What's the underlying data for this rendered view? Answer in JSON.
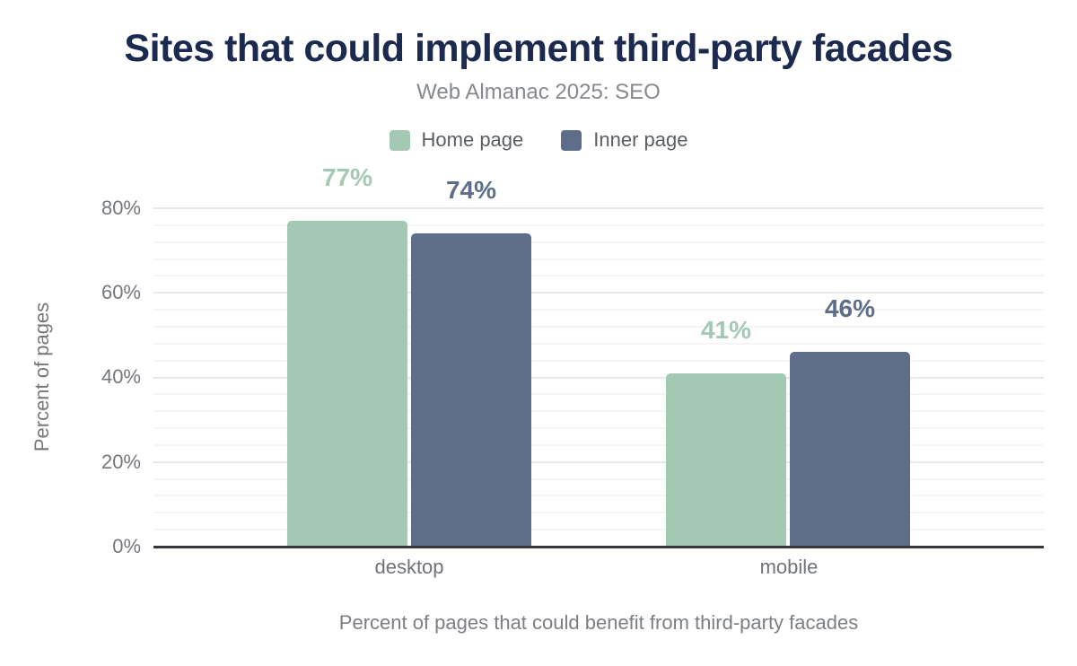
{
  "chart_data": {
    "type": "bar",
    "title": "Sites that could implement third-party facades",
    "subtitle": "Web Almanac 2025: SEO",
    "categories": [
      "desktop",
      "mobile"
    ],
    "series": [
      {
        "name": "Home page",
        "color": "#a3c9b4",
        "values": [
          77,
          41
        ],
        "labels": [
          "77%",
          "41%"
        ]
      },
      {
        "name": "Inner page",
        "color": "#5e6d89",
        "values": [
          74,
          46
        ],
        "labels": [
          "74%",
          "46%"
        ]
      }
    ],
    "xlabel": "Percent of pages that could benefit from third-party facades",
    "ylabel": "Percent of pages",
    "ylim": [
      0,
      80
    ],
    "ytick_labels": [
      "0%",
      "20%",
      "40%",
      "60%",
      "80%"
    ],
    "grid": {
      "minor_step": 4,
      "major_step": 20,
      "on": true
    },
    "legend_position": "top",
    "colors": {
      "title": "#1b2a4e",
      "subtitle": "#85898d",
      "axis_text": "#74787c",
      "baseline": "#35383b",
      "background": "#ffffff"
    }
  }
}
